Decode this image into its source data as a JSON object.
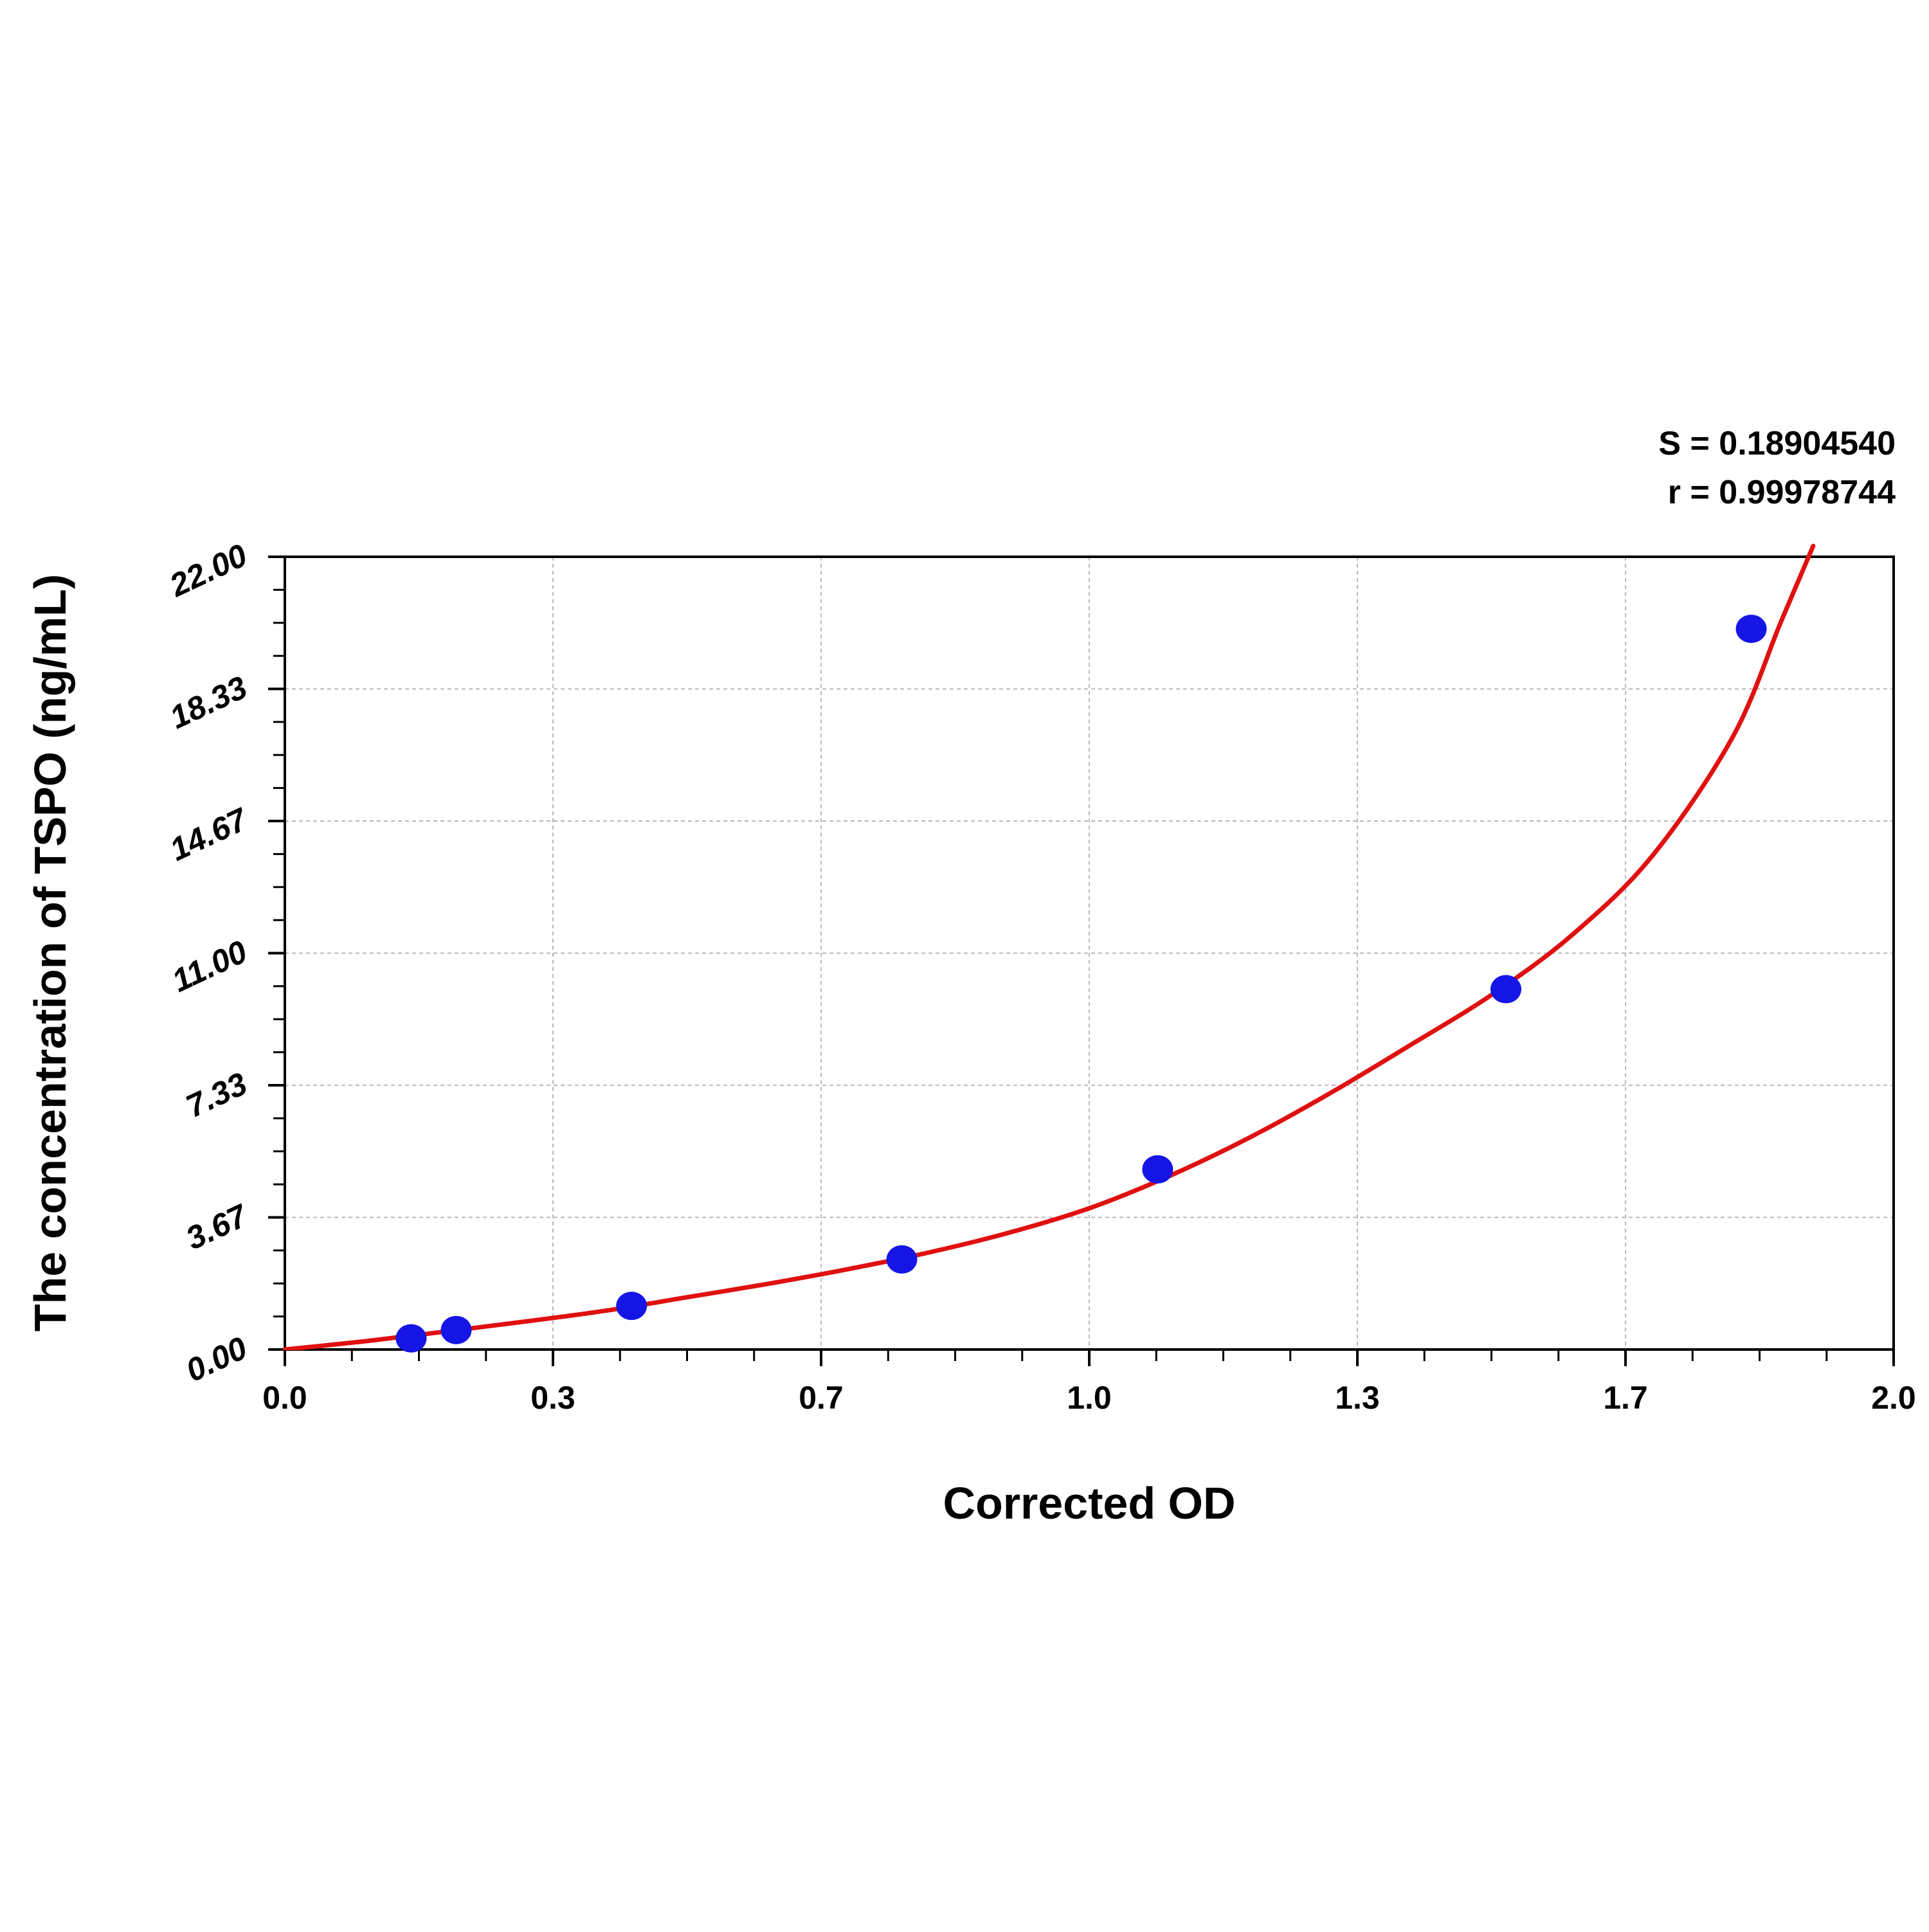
{
  "chart_data": {
    "type": "scatter",
    "xlabel": "Corrected OD",
    "ylabel": "The concentration of TSPO (ng/mL)",
    "xlim": [
      0.0,
      2.0
    ],
    "ylim": [
      0.0,
      22.0
    ],
    "x_ticks": [
      "0.0",
      "0.3",
      "0.7",
      "1.0",
      "1.3",
      "1.7",
      "2.0"
    ],
    "y_ticks": [
      "0.00",
      "3.67",
      "7.33",
      "11.00",
      "14.67",
      "18.33",
      "22.00"
    ],
    "grid": true,
    "stats": {
      "s_label": "S = 0.18904540",
      "r_label": "r = 0.99978744"
    },
    "series": [
      {
        "kind": "points",
        "color": "#1515e6",
        "points": [
          {
            "x": 0.157,
            "y": 0.31
          },
          {
            "x": 0.213,
            "y": 0.54
          },
          {
            "x": 0.431,
            "y": 1.21
          },
          {
            "x": 0.767,
            "y": 2.5
          },
          {
            "x": 1.085,
            "y": 5.0
          },
          {
            "x": 1.518,
            "y": 10.0
          },
          {
            "x": 1.823,
            "y": 20.0
          }
        ]
      },
      {
        "kind": "fit-curve",
        "color": "#e01010",
        "points": [
          {
            "x": 0.0,
            "y": 0.0
          },
          {
            "x": 0.1,
            "y": 0.23
          },
          {
            "x": 0.2,
            "y": 0.5
          },
          {
            "x": 0.3,
            "y": 0.78
          },
          {
            "x": 0.4,
            "y": 1.08
          },
          {
            "x": 0.5,
            "y": 1.45
          },
          {
            "x": 0.6,
            "y": 1.82
          },
          {
            "x": 0.7,
            "y": 2.23
          },
          {
            "x": 0.8,
            "y": 2.69
          },
          {
            "x": 0.9,
            "y": 3.24
          },
          {
            "x": 1.0,
            "y": 3.92
          },
          {
            "x": 1.1,
            "y": 4.82
          },
          {
            "x": 1.2,
            "y": 5.89
          },
          {
            "x": 1.3,
            "y": 7.12
          },
          {
            "x": 1.4,
            "y": 8.46
          },
          {
            "x": 1.5,
            "y": 9.84
          },
          {
            "x": 1.6,
            "y": 11.5
          },
          {
            "x": 1.7,
            "y": 13.7
          },
          {
            "x": 1.8,
            "y": 17.0
          },
          {
            "x": 1.86,
            "y": 20.2
          },
          {
            "x": 1.9,
            "y": 22.3
          }
        ]
      }
    ]
  }
}
